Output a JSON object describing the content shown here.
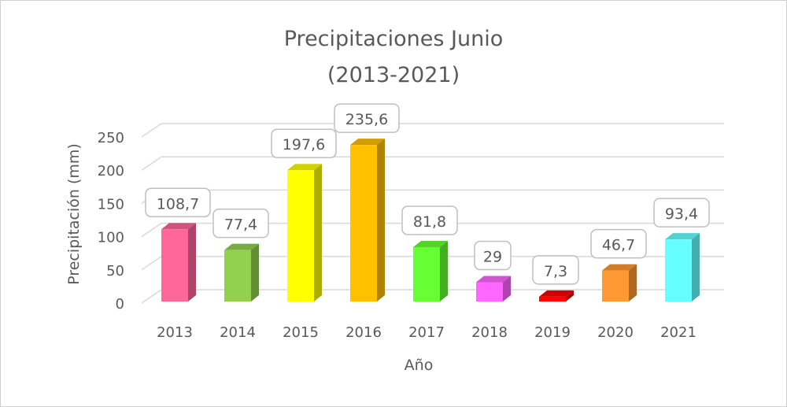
{
  "chart_data": {
    "type": "bar",
    "title_line1": "Precipitaciones Junio",
    "title_line2": "(2013-2021)",
    "xlabel": "Año",
    "ylabel": "Precipitación (mm)",
    "ylim": [
      0,
      250
    ],
    "yticks": [
      "0",
      "50",
      "100",
      "150",
      "200",
      "250"
    ],
    "grid": true,
    "style": "3d-column",
    "categories": [
      "2013",
      "2014",
      "2015",
      "2016",
      "2017",
      "2018",
      "2019",
      "2020",
      "2021"
    ],
    "values": [
      108.7,
      77.4,
      197.6,
      235.6,
      81.8,
      29,
      7.3,
      46.7,
      93.4
    ],
    "data_labels": [
      "108,7",
      "77,4",
      "197,6",
      "235,6",
      "81,8",
      "29",
      "7,3",
      "46,7",
      "93,4"
    ],
    "colors": [
      "#ff6699",
      "#92d050",
      "#ffff00",
      "#ffc000",
      "#66ff33",
      "#ff66ff",
      "#ff0000",
      "#ff9933",
      "#66ffff"
    ]
  }
}
